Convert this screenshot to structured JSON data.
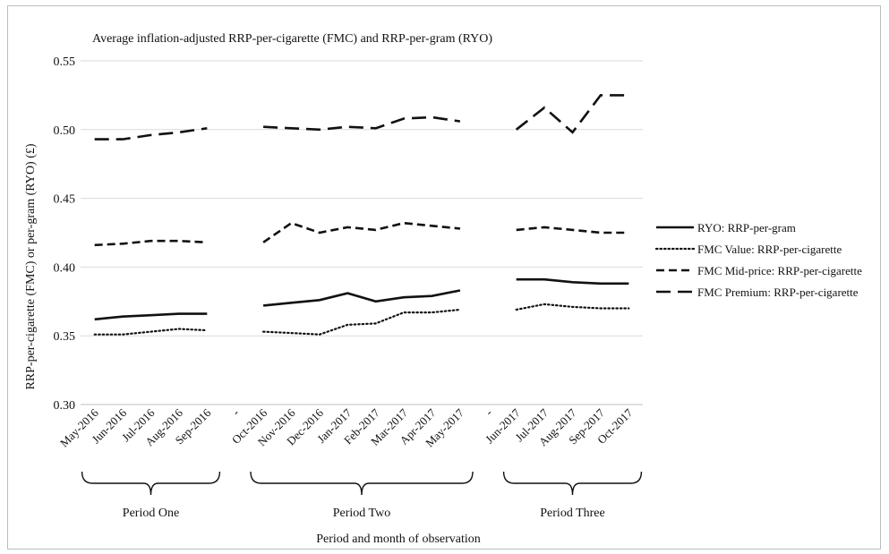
{
  "chart_data": {
    "type": "line",
    "title": "Average inflation-adjusted RRP-per-cigarette (FMC) and RRP-per-gram (RYO)",
    "xlabel": "Period and month of observation",
    "ylabel": "RRP-per-cigarette (FMC) or per-gram (RYO) (£)",
    "ylim": [
      0.3,
      0.55
    ],
    "yticks": [
      "0.30",
      "0.35",
      "0.40",
      "0.45",
      "0.50",
      "0.55"
    ],
    "grid": true,
    "legend": "right",
    "categories": [
      "May-2016",
      "Jun-2016",
      "Jul-2016",
      "Aug-2016",
      "Sep-2016",
      "-",
      "Oct-2016",
      "Nov-2016",
      "Dec-2016",
      "Jan-2017",
      "Feb-2017",
      "Mar-2017",
      "Apr-2017",
      "May-2017",
      "-",
      "Jun-2017",
      "Jul-2017",
      "Aug-2017",
      "Sep-2017",
      "Oct-2017"
    ],
    "periods": [
      {
        "label": "Period One",
        "from": 0,
        "to": 4
      },
      {
        "label": "Period Two",
        "from": 6,
        "to": 13
      },
      {
        "label": "Period Three",
        "from": 15,
        "to": 19
      }
    ],
    "series": [
      {
        "name": "RYO: RRP-per-gram",
        "style": "solid",
        "values": [
          0.362,
          0.364,
          0.365,
          0.366,
          0.366,
          null,
          0.372,
          0.374,
          0.376,
          0.381,
          0.375,
          0.378,
          0.379,
          0.383,
          null,
          0.391,
          0.391,
          0.389,
          0.388,
          0.388
        ]
      },
      {
        "name": "FMC Value: RRP-per-cigarette",
        "style": "dotted",
        "values": [
          0.351,
          0.351,
          0.353,
          0.355,
          0.354,
          null,
          0.353,
          0.352,
          0.351,
          0.358,
          0.359,
          0.367,
          0.367,
          0.369,
          null,
          0.369,
          0.373,
          0.371,
          0.37,
          0.37
        ]
      },
      {
        "name": "FMC Mid-price: RRP-per-cigarette",
        "style": "dash",
        "values": [
          0.416,
          0.417,
          0.419,
          0.419,
          0.418,
          null,
          0.418,
          0.432,
          0.425,
          0.429,
          0.427,
          0.432,
          0.43,
          0.428,
          null,
          0.427,
          0.429,
          0.427,
          0.425,
          0.425
        ]
      },
      {
        "name": "FMC Premium: RRP-per-cigarette",
        "style": "longdash",
        "values": [
          0.493,
          0.493,
          0.496,
          0.498,
          0.501,
          null,
          0.502,
          0.501,
          0.5,
          0.502,
          0.501,
          0.508,
          0.509,
          0.506,
          null,
          0.5,
          0.516,
          0.498,
          0.525,
          0.525
        ]
      }
    ]
  },
  "colors": {
    "line": "#111111",
    "grid": "#d9d9d9"
  }
}
